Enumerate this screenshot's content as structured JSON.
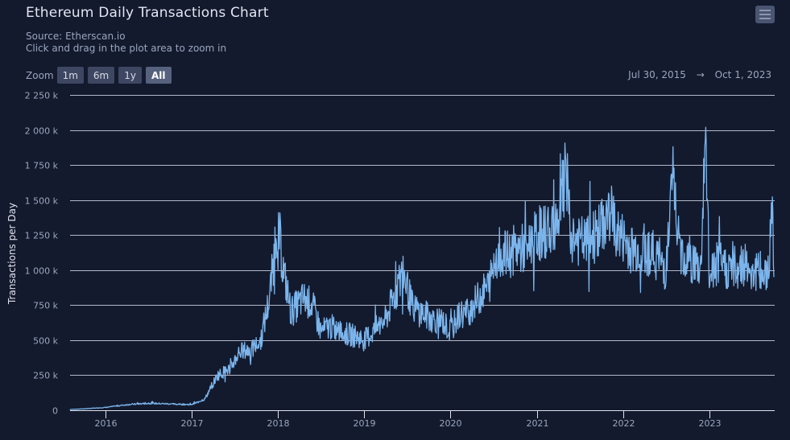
{
  "header": {
    "title": "Ethereum Daily Transactions Chart",
    "source": "Source: Etherscan.io",
    "hint": "Click and drag in the plot area to zoom in",
    "menu_icon": "hamburger-menu-icon"
  },
  "zoom": {
    "label": "Zoom",
    "buttons": [
      {
        "label": "1m",
        "active": false
      },
      {
        "label": "6m",
        "active": false
      },
      {
        "label": "1y",
        "active": false
      },
      {
        "label": "All",
        "active": true
      }
    ]
  },
  "range": {
    "from": "Jul 30, 2015",
    "arrow": "→",
    "to": "Oct 1, 2023"
  },
  "colors": {
    "background": "#131a2e",
    "line": "#7cb5ec",
    "grid": "#b4b9c8",
    "axis_text": "#9aa6bd"
  },
  "chart_data": {
    "type": "line",
    "title": "Ethereum Daily Transactions Chart",
    "subtitle": "Source: Etherscan.io",
    "xlabel": "",
    "ylabel": "Transactions per Day",
    "ylim": [
      0,
      2250000
    ],
    "yticks": [
      "0",
      "250 k",
      "500 k",
      "750 k",
      "1 000 k",
      "1 250 k",
      "1 500 k",
      "1 750 k",
      "2 000 k",
      "2 250 k"
    ],
    "xticks": [
      "2016",
      "2017",
      "2018",
      "2019",
      "2020",
      "2021",
      "2022",
      "2023"
    ],
    "xrange": [
      "2015-07-30",
      "2023-10-01"
    ],
    "grid": true,
    "legend": "none",
    "series": [
      {
        "name": "Transactions per Day",
        "x": [
          2015.58,
          2015.75,
          2016.0,
          2016.25,
          2016.5,
          2016.75,
          2017.0,
          2017.15,
          2017.3,
          2017.45,
          2017.55,
          2017.7,
          2017.8,
          2017.9,
          2018.0,
          2018.05,
          2018.15,
          2018.3,
          2018.4,
          2018.5,
          2018.6,
          2018.75,
          2018.9,
          2019.0,
          2019.1,
          2019.25,
          2019.4,
          2019.45,
          2019.55,
          2019.65,
          2019.8,
          2019.9,
          2020.0,
          2020.1,
          2020.2,
          2020.35,
          2020.45,
          2020.55,
          2020.65,
          2020.75,
          2020.85,
          2021.0,
          2021.15,
          2021.25,
          2021.35,
          2021.4,
          2021.5,
          2021.6,
          2021.75,
          2021.85,
          2021.95,
          2022.1,
          2022.25,
          2022.4,
          2022.5,
          2022.58,
          2022.65,
          2022.75,
          2022.9,
          2022.96,
          2023.0,
          2023.1,
          2023.25,
          2023.4,
          2023.5,
          2023.6,
          2023.7,
          2023.72,
          2023.75
        ],
        "values": [
          5000,
          10000,
          20000,
          40000,
          50000,
          45000,
          40000,
          80000,
          250000,
          300000,
          420000,
          430000,
          500000,
          800000,
          1350000,
          1050000,
          700000,
          800000,
          750000,
          560000,
          600000,
          550000,
          530000,
          500000,
          560000,
          650000,
          900000,
          1000000,
          750000,
          700000,
          650000,
          640000,
          560000,
          680000,
          700000,
          820000,
          900000,
          1150000,
          1100000,
          1150000,
          1150000,
          1250000,
          1300000,
          1400000,
          1720000,
          1250000,
          1200000,
          1200000,
          1300000,
          1420000,
          1250000,
          1150000,
          1150000,
          1100000,
          1000000,
          1680000,
          1150000,
          1100000,
          1000000,
          1940000,
          950000,
          1050000,
          1000000,
          1050000,
          1000000,
          980000,
          960000,
          1630000,
          950000
        ]
      }
    ],
    "annotations": []
  }
}
